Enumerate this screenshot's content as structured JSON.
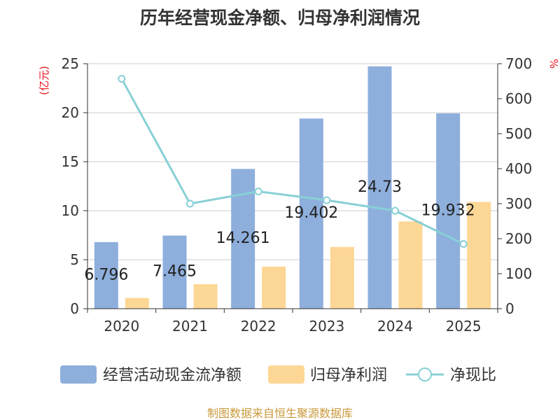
{
  "chart_data": {
    "type": "bar",
    "title": "历年经营现金净额、归母净利润情况",
    "categories": [
      "2020",
      "2021",
      "2022",
      "2023",
      "2024",
      "2025"
    ],
    "series": [
      {
        "name": "经营活动现金流净额",
        "type": "bar",
        "axis": "left",
        "color": "#8eafdc",
        "values": [
          6.796,
          7.465,
          14.261,
          19.402,
          24.73,
          19.932
        ],
        "labels": [
          "6.796",
          "7.465",
          "14.261",
          "19.402",
          "24.73",
          "19.932"
        ]
      },
      {
        "name": "归母净利润",
        "type": "bar",
        "axis": "left",
        "color": "#fdd795",
        "values": [
          1.1,
          2.5,
          4.3,
          6.3,
          8.9,
          10.9
        ]
      },
      {
        "name": "净现比",
        "type": "line",
        "axis": "right",
        "color": "#88d0d6",
        "values": [
          657,
          300,
          335,
          310,
          280,
          185
        ]
      }
    ],
    "y_left": {
      "label": "(亿元)",
      "min": 0,
      "max": 25,
      "ticks": [
        0,
        5,
        10,
        15,
        20,
        25
      ]
    },
    "y_right": {
      "label": "%",
      "min": 0,
      "max": 700,
      "ticks": [
        0,
        100,
        200,
        300,
        400,
        500,
        600,
        700
      ]
    },
    "grid": true,
    "legend_position": "bottom"
  },
  "source": "制图数据来自恒生聚源数据库"
}
